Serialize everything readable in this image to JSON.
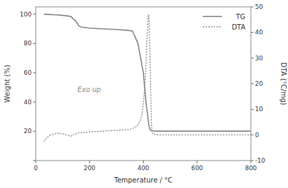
{
  "chart_data": {
    "type": "line",
    "xlabel": "Temperature / °C",
    "ylabel": "Weight (%)",
    "y2label": "DTA (°C/mg)",
    "series": [
      {
        "name": "TG",
        "color": "#808080",
        "line_style": "solid",
        "x": [
          30,
          50,
          80,
          100,
          130,
          150,
          160,
          170,
          200,
          250,
          300,
          340,
          360,
          380,
          400,
          410,
          420,
          425,
          430,
          435,
          440,
          450,
          500,
          600,
          700,
          800
        ],
        "values": [
          100,
          99.8,
          99.5,
          99.2,
          98.5,
          95,
          92,
          91.2,
          90.5,
          90,
          89.5,
          89,
          88.5,
          80,
          60,
          40,
          25,
          21,
          20.5,
          20.3,
          20.2,
          20.1,
          20.1,
          20.1,
          20.1,
          20.1
        ]
      },
      {
        "name": "DTA",
        "color": "#808080",
        "line_style": "dotted",
        "axis": "y2",
        "x": [
          30,
          50,
          80,
          100,
          130,
          150,
          160,
          170,
          200,
          250,
          300,
          330,
          350,
          360,
          370,
          380,
          390,
          395,
          400,
          405,
          410,
          415,
          418,
          420,
          422,
          425,
          428,
          430,
          432,
          435,
          440,
          450,
          500,
          600,
          700,
          800
        ],
        "values": [
          -2.5,
          -0.2,
          0.7,
          0.5,
          -0.5,
          0.5,
          1.0,
          0.8,
          1.2,
          1.5,
          1.8,
          2.0,
          2.2,
          2.5,
          3.0,
          4.0,
          6.0,
          8.0,
          12.0,
          18.0,
          28.0,
          40.0,
          46.0,
          47.0,
          44.0,
          30.0,
          15.0,
          5.0,
          1.5,
          0.5,
          0.2,
          0.0,
          0.0,
          0.0,
          0.0,
          0.0
        ]
      }
    ],
    "xlim": [
      0,
      800
    ],
    "xticks": [
      0,
      200,
      400,
      600,
      800
    ],
    "ylim": [
      0,
      105
    ],
    "yticks": [
      {
        "value": 0,
        "label": null
      },
      20,
      40,
      60,
      80,
      100
    ],
    "y2lim": [
      -10,
      50
    ],
    "y2ticks": [
      -10,
      0,
      10,
      20,
      30,
      40,
      50
    ],
    "annotations": [
      {
        "text": "Exo up",
        "x": 155,
        "y": 47
      }
    ],
    "legend": "upper right",
    "grid": false
  }
}
